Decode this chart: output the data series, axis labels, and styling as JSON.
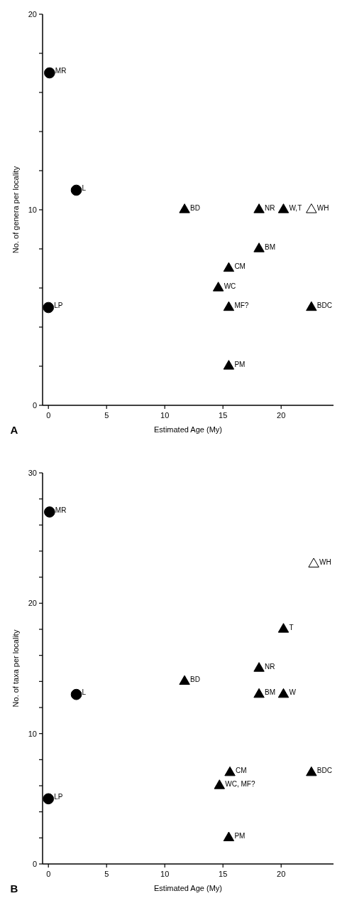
{
  "chart_data": [
    {
      "type": "scatter",
      "xlabel": "Estimated Age (My)",
      "ylabel": "No. of genera per locality",
      "xlim": [
        -0.5,
        24.5
      ],
      "ylim": [
        0,
        20
      ],
      "xticks": [
        0,
        5,
        10,
        15,
        20
      ],
      "yticks": [
        0,
        {
          "value": 2,
          "label": null
        },
        {
          "value": 4,
          "label": null
        },
        {
          "value": 6,
          "label": null
        },
        {
          "value": 8,
          "label": null
        },
        10,
        {
          "value": 12,
          "label": null
        },
        {
          "value": 14,
          "label": null
        },
        {
          "value": 16,
          "label": null
        },
        {
          "value": 18,
          "label": null
        },
        20
      ],
      "series": [
        {
          "color": "#000000",
          "marker": "circle",
          "x": [
            0.1,
            0,
            2.4
          ],
          "values": [
            17,
            5,
            11
          ]
        },
        {
          "color": "#000000",
          "marker": "triangle",
          "x": [
            11.7,
            14.6,
            15.5,
            15.5,
            15.5,
            18.1,
            18.1,
            20.2,
            22.6
          ],
          "values": [
            10,
            6,
            7,
            5,
            2,
            8,
            10,
            10,
            5
          ]
        },
        {
          "color": "#ffffff",
          "marker": "triangle",
          "x": [
            22.6
          ],
          "values": [
            10
          ]
        }
      ],
      "annotations": [
        "A",
        {
          "text": "MR",
          "x": 0.1,
          "y": 17
        },
        {
          "text": "LP",
          "x": 0,
          "y": 5
        },
        {
          "text": "L",
          "x": 2.4,
          "y": 11
        },
        {
          "text": "BD",
          "x": 11.7,
          "y": 10
        },
        {
          "text": "WC",
          "x": 14.6,
          "y": 6
        },
        {
          "text": "CM",
          "x": 15.5,
          "y": 7
        },
        {
          "text": "MF?",
          "x": 15.5,
          "y": 5
        },
        {
          "text": "PM",
          "x": 15.5,
          "y": 2
        },
        {
          "text": "BM",
          "x": 18.1,
          "y": 8
        },
        {
          "text": "NR",
          "x": 18.1,
          "y": 10
        },
        {
          "text": "W,T",
          "x": 20.2,
          "y": 10
        },
        {
          "text": "WH",
          "x": 22.6,
          "y": 10
        },
        {
          "text": "BDC",
          "x": 22.6,
          "y": 5
        }
      ]
    },
    {
      "type": "scatter",
      "xlabel": "Estimated Age (My)",
      "ylabel": "No. of taxa per locality",
      "xlim": [
        -0.5,
        24.5
      ],
      "ylim": [
        0,
        30
      ],
      "xticks": [
        0,
        5,
        10,
        15,
        20
      ],
      "yticks": [
        0,
        {
          "value": 2,
          "label": null
        },
        {
          "value": 4,
          "label": null
        },
        {
          "value": 6,
          "label": null
        },
        {
          "value": 8,
          "label": null
        },
        10,
        {
          "value": 12,
          "label": null
        },
        {
          "value": 14,
          "label": null
        },
        {
          "value": 16,
          "label": null
        },
        {
          "value": 18,
          "label": null
        },
        20,
        {
          "value": 22,
          "label": null
        },
        {
          "value": 24,
          "label": null
        },
        {
          "value": 26,
          "label": null
        },
        {
          "value": 28,
          "label": null
        },
        30
      ],
      "series": [
        {
          "color": "#000000",
          "marker": "circle",
          "x": [
            0.1,
            0,
            2.4
          ],
          "values": [
            27,
            5,
            13
          ]
        },
        {
          "color": "#000000",
          "marker": "triangle",
          "x": [
            11.7,
            14.7,
            15.6,
            15.5,
            18.1,
            18.1,
            20.2,
            20.2,
            22.6
          ],
          "values": [
            14,
            6,
            7,
            2,
            15,
            13,
            18,
            13,
            7
          ]
        },
        {
          "color": "#ffffff",
          "marker": "triangle",
          "x": [
            22.8
          ],
          "values": [
            23
          ]
        }
      ],
      "annotations": [
        "B",
        {
          "text": "MR",
          "x": 0.1,
          "y": 27
        },
        {
          "text": "LP",
          "x": 0,
          "y": 5
        },
        {
          "text": "L",
          "x": 2.4,
          "y": 13
        },
        {
          "text": "BD",
          "x": 11.7,
          "y": 14
        },
        {
          "text": "WC, MF?",
          "x": 14.7,
          "y": 6
        },
        {
          "text": "CM",
          "x": 15.6,
          "y": 7
        },
        {
          "text": "PM",
          "x": 15.5,
          "y": 2
        },
        {
          "text": "NR",
          "x": 18.1,
          "y": 15
        },
        {
          "text": "BM",
          "x": 18.1,
          "y": 13
        },
        {
          "text": "T",
          "x": 20.2,
          "y": 18
        },
        {
          "text": "W",
          "x": 20.2,
          "y": 13
        },
        {
          "text": "BDC",
          "x": 22.6,
          "y": 7
        },
        {
          "text": "WH",
          "x": 22.8,
          "y": 23
        }
      ]
    }
  ]
}
